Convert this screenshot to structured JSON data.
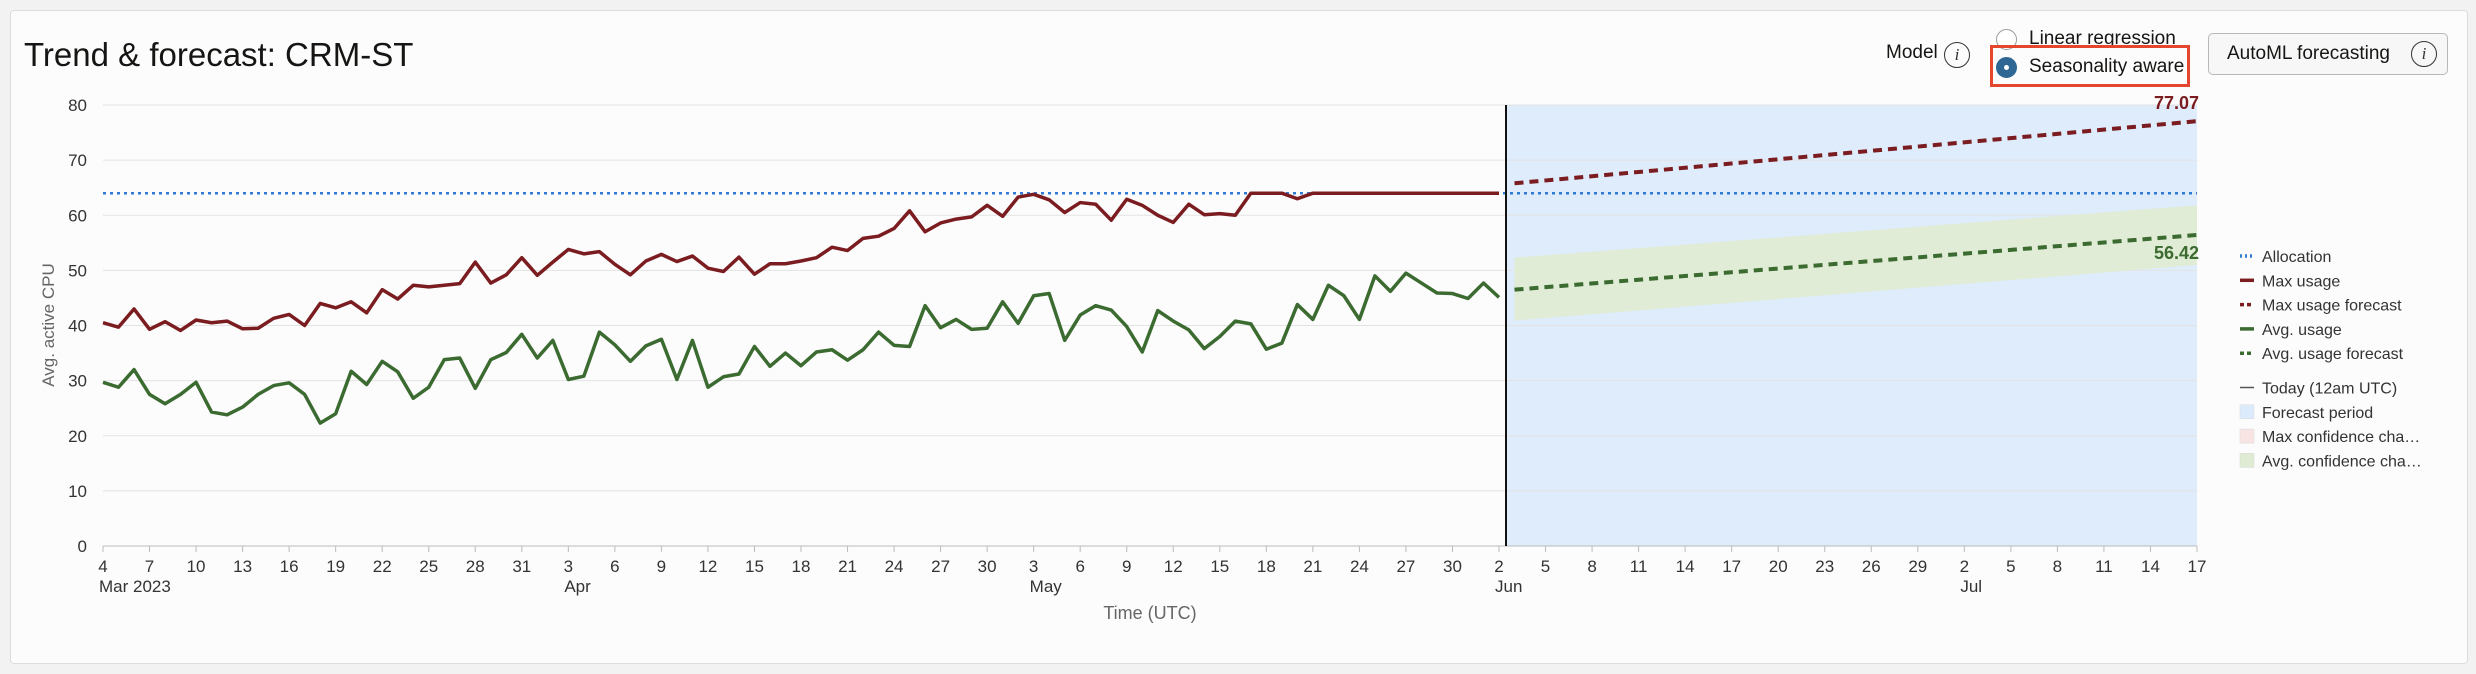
{
  "title": "Trend & forecast: CRM-ST",
  "model": {
    "label": "Model",
    "options": [
      {
        "label": "Linear regression",
        "selected": false
      },
      {
        "label": "Seasonality aware",
        "selected": true
      }
    ],
    "automl_label": "AutoML forecasting",
    "info_icon_glyph": "i"
  },
  "chart_data": {
    "type": "line",
    "ylabel": "Avg. active CPU",
    "xlabel": "Time (UTC)",
    "ylim": [
      0,
      80
    ],
    "yticks": [
      0,
      10,
      20,
      30,
      40,
      50,
      60,
      70,
      80
    ],
    "x_start": "2023-03-04",
    "x_end": "2023-07-17",
    "today": "2023-06-02",
    "forecast_period": [
      "2023-06-03",
      "2023-07-17"
    ],
    "xticks": [
      {
        "date": "2023-03-04",
        "label": "4",
        "month": "Mar 2023"
      },
      {
        "date": "2023-03-07",
        "label": "7"
      },
      {
        "date": "2023-03-10",
        "label": "10"
      },
      {
        "date": "2023-03-13",
        "label": "13"
      },
      {
        "date": "2023-03-16",
        "label": "16"
      },
      {
        "date": "2023-03-19",
        "label": "19"
      },
      {
        "date": "2023-03-22",
        "label": "22"
      },
      {
        "date": "2023-03-25",
        "label": "25"
      },
      {
        "date": "2023-03-28",
        "label": "28"
      },
      {
        "date": "2023-03-31",
        "label": "31"
      },
      {
        "date": "2023-04-03",
        "label": "3",
        "month": "Apr"
      },
      {
        "date": "2023-04-06",
        "label": "6"
      },
      {
        "date": "2023-04-09",
        "label": "9"
      },
      {
        "date": "2023-04-12",
        "label": "12"
      },
      {
        "date": "2023-04-15",
        "label": "15"
      },
      {
        "date": "2023-04-18",
        "label": "18"
      },
      {
        "date": "2023-04-21",
        "label": "21"
      },
      {
        "date": "2023-04-24",
        "label": "24"
      },
      {
        "date": "2023-04-27",
        "label": "27"
      },
      {
        "date": "2023-04-30",
        "label": "30"
      },
      {
        "date": "2023-05-03",
        "label": "3",
        "month": "May"
      },
      {
        "date": "2023-05-06",
        "label": "6"
      },
      {
        "date": "2023-05-09",
        "label": "9"
      },
      {
        "date": "2023-05-12",
        "label": "12"
      },
      {
        "date": "2023-05-15",
        "label": "15"
      },
      {
        "date": "2023-05-18",
        "label": "18"
      },
      {
        "date": "2023-05-21",
        "label": "21"
      },
      {
        "date": "2023-05-24",
        "label": "24"
      },
      {
        "date": "2023-05-27",
        "label": "27"
      },
      {
        "date": "2023-05-30",
        "label": "30"
      },
      {
        "date": "2023-06-02",
        "label": "2",
        "month": "Jun"
      },
      {
        "date": "2023-06-05",
        "label": "5"
      },
      {
        "date": "2023-06-08",
        "label": "8"
      },
      {
        "date": "2023-06-11",
        "label": "11"
      },
      {
        "date": "2023-06-14",
        "label": "14"
      },
      {
        "date": "2023-06-17",
        "label": "17"
      },
      {
        "date": "2023-06-20",
        "label": "20"
      },
      {
        "date": "2023-06-23",
        "label": "23"
      },
      {
        "date": "2023-06-26",
        "label": "26"
      },
      {
        "date": "2023-06-29",
        "label": "29"
      },
      {
        "date": "2023-07-02",
        "label": "2",
        "month": "Jul"
      },
      {
        "date": "2023-07-05",
        "label": "5"
      },
      {
        "date": "2023-07-08",
        "label": "8"
      },
      {
        "date": "2023-07-11",
        "label": "11"
      },
      {
        "date": "2023-07-14",
        "label": "14"
      },
      {
        "date": "2023-07-17",
        "label": "17"
      }
    ],
    "allocation": 64,
    "max_usage": {
      "color": "#7a1c20",
      "points": [
        [
          "2023-03-04",
          40.5
        ],
        [
          "2023-03-05",
          39.7
        ],
        [
          "2023-03-06",
          43.0
        ],
        [
          "2023-03-07",
          39.3
        ],
        [
          "2023-03-08",
          40.7
        ],
        [
          "2023-03-09",
          39.1
        ],
        [
          "2023-03-10",
          41.0
        ],
        [
          "2023-03-11",
          40.5
        ],
        [
          "2023-03-12",
          40.8
        ],
        [
          "2023-03-13",
          39.4
        ],
        [
          "2023-03-14",
          39.5
        ],
        [
          "2023-03-15",
          41.3
        ],
        [
          "2023-03-16",
          42.0
        ],
        [
          "2023-03-17",
          40.0
        ],
        [
          "2023-03-18",
          44.0
        ],
        [
          "2023-03-19",
          43.2
        ],
        [
          "2023-03-20",
          44.3
        ],
        [
          "2023-03-21",
          42.3
        ],
        [
          "2023-03-22",
          46.5
        ],
        [
          "2023-03-23",
          44.8
        ],
        [
          "2023-03-24",
          47.3
        ],
        [
          "2023-03-25",
          47.0
        ],
        [
          "2023-03-26",
          47.3
        ],
        [
          "2023-03-27",
          47.6
        ],
        [
          "2023-03-28",
          51.5
        ],
        [
          "2023-03-29",
          47.7
        ],
        [
          "2023-03-30",
          49.2
        ],
        [
          "2023-03-31",
          52.3
        ],
        [
          "2023-04-01",
          49.1
        ],
        [
          "2023-04-02",
          51.5
        ],
        [
          "2023-04-03",
          53.8
        ],
        [
          "2023-04-04",
          53.0
        ],
        [
          "2023-04-05",
          53.4
        ],
        [
          "2023-04-06",
          51.1
        ],
        [
          "2023-04-07",
          49.2
        ],
        [
          "2023-04-08",
          51.7
        ],
        [
          "2023-04-09",
          52.9
        ],
        [
          "2023-04-10",
          51.6
        ],
        [
          "2023-04-11",
          52.6
        ],
        [
          "2023-04-12",
          50.4
        ],
        [
          "2023-04-13",
          49.8
        ],
        [
          "2023-04-14",
          52.4
        ],
        [
          "2023-04-15",
          49.3
        ],
        [
          "2023-04-16",
          51.2
        ],
        [
          "2023-04-17",
          51.2
        ],
        [
          "2023-04-18",
          51.7
        ],
        [
          "2023-04-19",
          52.3
        ],
        [
          "2023-04-20",
          54.2
        ],
        [
          "2023-04-21",
          53.6
        ],
        [
          "2023-04-22",
          55.8
        ],
        [
          "2023-04-23",
          56.2
        ],
        [
          "2023-04-24",
          57.6
        ],
        [
          "2023-04-25",
          60.8
        ],
        [
          "2023-04-26",
          57.0
        ],
        [
          "2023-04-27",
          58.6
        ],
        [
          "2023-04-28",
          59.3
        ],
        [
          "2023-04-29",
          59.7
        ],
        [
          "2023-04-30",
          61.8
        ],
        [
          "2023-05-01",
          59.8
        ],
        [
          "2023-05-02",
          63.3
        ],
        [
          "2023-05-03",
          63.8
        ],
        [
          "2023-05-04",
          62.8
        ],
        [
          "2023-05-05",
          60.5
        ],
        [
          "2023-05-06",
          62.3
        ],
        [
          "2023-05-07",
          62.0
        ],
        [
          "2023-05-08",
          59.1
        ],
        [
          "2023-05-09",
          62.9
        ],
        [
          "2023-05-10",
          61.8
        ],
        [
          "2023-05-11",
          60.0
        ],
        [
          "2023-05-12",
          58.7
        ],
        [
          "2023-05-13",
          62.0
        ],
        [
          "2023-05-14",
          60.1
        ],
        [
          "2023-05-15",
          60.3
        ],
        [
          "2023-05-16",
          60.0
        ],
        [
          "2023-05-17",
          64.0
        ],
        [
          "2023-05-18",
          64.0
        ],
        [
          "2023-05-19",
          64.0
        ],
        [
          "2023-05-20",
          63.0
        ],
        [
          "2023-05-21",
          64.0
        ],
        [
          "2023-05-22",
          64.0
        ],
        [
          "2023-05-23",
          64.0
        ],
        [
          "2023-05-24",
          64.0
        ],
        [
          "2023-05-25",
          64.0
        ],
        [
          "2023-05-26",
          64.0
        ],
        [
          "2023-05-27",
          64.0
        ],
        [
          "2023-05-28",
          64.0
        ],
        [
          "2023-05-29",
          64.0
        ],
        [
          "2023-05-30",
          64.0
        ],
        [
          "2023-05-31",
          64.0
        ],
        [
          "2023-06-01",
          64.0
        ],
        [
          "2023-06-02",
          64.0
        ]
      ]
    },
    "avg_usage": {
      "color": "#3b6b30",
      "points": [
        [
          "2023-03-04",
          29.7
        ],
        [
          "2023-03-05",
          28.8
        ],
        [
          "2023-03-06",
          32.0
        ],
        [
          "2023-03-07",
          27.5
        ],
        [
          "2023-03-08",
          25.8
        ],
        [
          "2023-03-09",
          27.5
        ],
        [
          "2023-03-10",
          29.7
        ],
        [
          "2023-03-11",
          24.3
        ],
        [
          "2023-03-12",
          23.8
        ],
        [
          "2023-03-13",
          25.2
        ],
        [
          "2023-03-14",
          27.5
        ],
        [
          "2023-03-15",
          29.1
        ],
        [
          "2023-03-16",
          29.6
        ],
        [
          "2023-03-17",
          27.5
        ],
        [
          "2023-03-18",
          22.3
        ],
        [
          "2023-03-19",
          24.0
        ],
        [
          "2023-03-20",
          31.7
        ],
        [
          "2023-03-21",
          29.3
        ],
        [
          "2023-03-22",
          33.5
        ],
        [
          "2023-03-23",
          31.6
        ],
        [
          "2023-03-24",
          26.8
        ],
        [
          "2023-03-25",
          28.8
        ],
        [
          "2023-03-26",
          33.8
        ],
        [
          "2023-03-27",
          34.1
        ],
        [
          "2023-03-28",
          28.6
        ],
        [
          "2023-03-29",
          33.8
        ],
        [
          "2023-03-30",
          35.1
        ],
        [
          "2023-03-31",
          38.4
        ],
        [
          "2023-04-01",
          34.1
        ],
        [
          "2023-04-02",
          37.3
        ],
        [
          "2023-04-03",
          30.2
        ],
        [
          "2023-04-04",
          30.8
        ],
        [
          "2023-04-05",
          38.8
        ],
        [
          "2023-04-06",
          36.5
        ],
        [
          "2023-04-07",
          33.5
        ],
        [
          "2023-04-08",
          36.3
        ],
        [
          "2023-04-09",
          37.5
        ],
        [
          "2023-04-10",
          30.2
        ],
        [
          "2023-04-11",
          37.3
        ],
        [
          "2023-04-12",
          28.8
        ],
        [
          "2023-04-13",
          30.7
        ],
        [
          "2023-04-14",
          31.2
        ],
        [
          "2023-04-15",
          36.2
        ],
        [
          "2023-04-16",
          32.6
        ],
        [
          "2023-04-17",
          35.0
        ],
        [
          "2023-04-18",
          32.7
        ],
        [
          "2023-04-19",
          35.2
        ],
        [
          "2023-04-20",
          35.6
        ],
        [
          "2023-04-21",
          33.7
        ],
        [
          "2023-04-22",
          35.6
        ],
        [
          "2023-04-23",
          38.8
        ],
        [
          "2023-04-24",
          36.4
        ],
        [
          "2023-04-25",
          36.2
        ],
        [
          "2023-04-26",
          43.6
        ],
        [
          "2023-04-27",
          39.6
        ],
        [
          "2023-04-28",
          41.1
        ],
        [
          "2023-04-29",
          39.3
        ],
        [
          "2023-04-30",
          39.5
        ],
        [
          "2023-05-01",
          44.3
        ],
        [
          "2023-05-02",
          40.4
        ],
        [
          "2023-05-03",
          45.4
        ],
        [
          "2023-05-04",
          45.8
        ],
        [
          "2023-05-05",
          37.3
        ],
        [
          "2023-05-06",
          41.9
        ],
        [
          "2023-05-07",
          43.6
        ],
        [
          "2023-05-08",
          42.8
        ],
        [
          "2023-05-09",
          39.8
        ],
        [
          "2023-05-10",
          35.2
        ],
        [
          "2023-05-11",
          42.7
        ],
        [
          "2023-05-12",
          40.8
        ],
        [
          "2023-05-13",
          39.2
        ],
        [
          "2023-05-14",
          35.8
        ],
        [
          "2023-05-15",
          38.0
        ],
        [
          "2023-05-16",
          40.8
        ],
        [
          "2023-05-17",
          40.3
        ],
        [
          "2023-05-18",
          35.7
        ],
        [
          "2023-05-19",
          36.8
        ],
        [
          "2023-05-20",
          43.8
        ],
        [
          "2023-05-21",
          41.1
        ],
        [
          "2023-05-22",
          47.3
        ],
        [
          "2023-05-23",
          45.4
        ],
        [
          "2023-05-24",
          41.1
        ],
        [
          "2023-05-25",
          49.0
        ],
        [
          "2023-05-26",
          46.2
        ],
        [
          "2023-05-27",
          49.5
        ],
        [
          "2023-05-28",
          47.7
        ],
        [
          "2023-05-29",
          45.9
        ],
        [
          "2023-05-30",
          45.8
        ],
        [
          "2023-05-31",
          44.9
        ],
        [
          "2023-06-01",
          47.7
        ],
        [
          "2023-06-02",
          45.1
        ]
      ]
    },
    "max_forecast": {
      "color": "#7a1c20",
      "start": [
        "2023-06-03",
        65.8
      ],
      "end": [
        "2023-07-17",
        77.07
      ],
      "end_label": "77.07"
    },
    "avg_forecast": {
      "color": "#3b6b30",
      "start": [
        "2023-06-03",
        46.5
      ],
      "end": [
        "2023-07-17",
        56.42
      ],
      "end_label": "56.42"
    },
    "avg_confidence_band": {
      "start": [
        40.9,
        52.3
      ],
      "end": [
        51.0,
        61.8
      ]
    },
    "legend": {
      "placement": "right",
      "items": [
        {
          "label": "Allocation",
          "style": "dotted",
          "color": "#2f7ad3"
        },
        {
          "label": "Max usage",
          "style": "solid",
          "color": "#7a1c20"
        },
        {
          "label": "Max usage forecast",
          "style": "dashed",
          "color": "#7a1c20"
        },
        {
          "label": "Avg. usage",
          "style": "solid",
          "color": "#3b6b30"
        },
        {
          "label": "Avg. usage forecast",
          "style": "dashed",
          "color": "#3b6b30"
        },
        {
          "label": "Today (12am UTC)",
          "style": "thin",
          "color": "#555555"
        },
        {
          "label": "Forecast period",
          "style": "box",
          "color": "#dcebfb"
        },
        {
          "label": "Max confidence cha…",
          "style": "box",
          "color": "#f8e5e3"
        },
        {
          "label": "Avg. confidence cha…",
          "style": "box",
          "color": "#dfecd3"
        }
      ]
    }
  }
}
